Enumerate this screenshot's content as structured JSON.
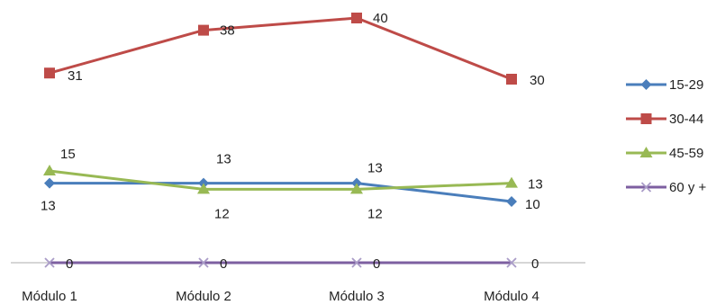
{
  "chart_data": {
    "type": "line",
    "categories": [
      "Módulo 1",
      "Módulo 2",
      "Módulo 3",
      "Módulo 4"
    ],
    "series": [
      {
        "name": "15-29",
        "values": [
          13,
          13,
          13,
          10
        ],
        "color": "#4a7ebb",
        "marker": "diamond"
      },
      {
        "name": "30-44",
        "values": [
          31,
          38,
          40,
          30
        ],
        "color": "#be4b48",
        "marker": "square"
      },
      {
        "name": "45-59",
        "values": [
          15,
          12,
          12,
          13
        ],
        "color": "#98b954",
        "marker": "triangle"
      },
      {
        "name": "60 y +",
        "values": [
          0,
          0,
          0,
          0
        ],
        "color": "#7d5fa0",
        "marker": "x"
      }
    ],
    "ylim": [
      0,
      40
    ],
    "grid": false,
    "legend_position": "right",
    "title": "",
    "xlabel": "",
    "ylabel": ""
  }
}
